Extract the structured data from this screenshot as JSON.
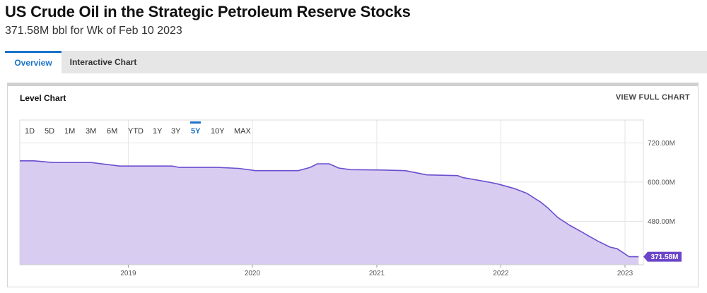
{
  "page": {
    "title": "US Crude Oil in the Strategic Petroleum Reserve Stocks",
    "subtitle": "371.58M bbl for Wk of Feb 10 2023"
  },
  "tabs": [
    {
      "label": "Overview",
      "active": true
    },
    {
      "label": "Interactive Chart",
      "active": false
    }
  ],
  "card": {
    "title": "Level Chart",
    "view_full_label": "VIEW FULL CHART"
  },
  "range_buttons": [
    {
      "label": "1D"
    },
    {
      "label": "5D"
    },
    {
      "label": "1M"
    },
    {
      "label": "3M"
    },
    {
      "label": "6M"
    },
    {
      "label": "YTD"
    },
    {
      "label": "1Y"
    },
    {
      "label": "3Y"
    },
    {
      "label": "5Y",
      "active": true
    },
    {
      "label": "10Y"
    },
    {
      "label": "MAX"
    }
  ],
  "colors": {
    "accent": "#1a73c9",
    "line": "#6b4fcf",
    "fill": "#d9ccf1",
    "last_badge": "#6b45c9"
  },
  "chart_data": {
    "type": "area",
    "title": "Level Chart",
    "x_ticks": [
      "2019",
      "2020",
      "2021",
      "2022",
      "2023"
    ],
    "y_ticks": [
      "720.00M",
      "600.00M",
      "480.00M"
    ],
    "y_tick_values": [
      720,
      600,
      480
    ],
    "ylim": [
      347,
      790
    ],
    "xlim": [
      "2018-02-16",
      "2023-02-24"
    ],
    "grid": true,
    "last_value_label": "371.58M",
    "unit": "M bbl",
    "series": [
      {
        "x": [
          "2018-02-16",
          "2018-03-30",
          "2018-05-25",
          "2018-09-14",
          "2018-12-07",
          "2019-01-25",
          "2019-05-10",
          "2019-05-31",
          "2019-09-20",
          "2019-11-22",
          "2020-01-10",
          "2020-04-10",
          "2020-05-15",
          "2020-06-19",
          "2020-07-10",
          "2020-08-14",
          "2020-09-11",
          "2020-10-16",
          "2021-01-15",
          "2021-03-26",
          "2021-05-28",
          "2021-08-27",
          "2021-09-10",
          "2021-11-26",
          "2021-12-24",
          "2022-02-11",
          "2022-03-18",
          "2022-04-29",
          "2022-05-20",
          "2022-06-17",
          "2022-07-22",
          "2022-08-26",
          "2022-09-23",
          "2022-10-14",
          "2022-11-18",
          "2022-12-09",
          "2023-01-13",
          "2023-02-10"
        ],
        "y": [
          665,
          665,
          660,
          660,
          649,
          649,
          649,
          645,
          645,
          642,
          635,
          635,
          635,
          645,
          656,
          656,
          643,
          638,
          637,
          635,
          622,
          620,
          614,
          600,
          594,
          580,
          566,
          538,
          520,
          492,
          468,
          448,
          431,
          419,
          401,
          396,
          371.6,
          371.58
        ]
      }
    ]
  }
}
